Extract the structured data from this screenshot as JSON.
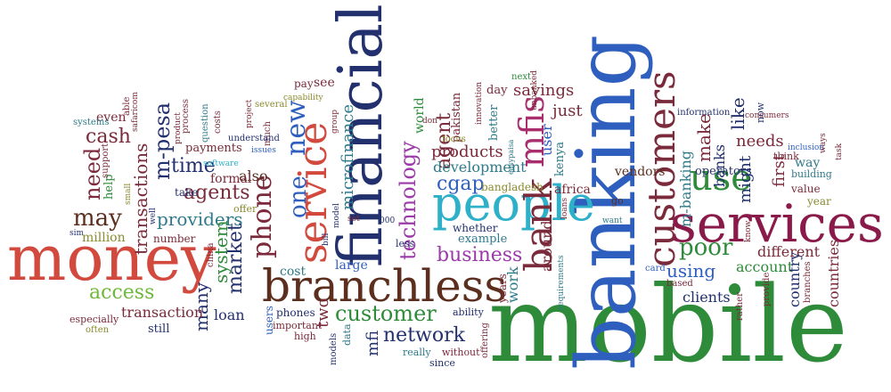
{
  "palette": {
    "green": "#2e8b3a",
    "blue": "#2e5fbf",
    "red": "#d24a3e",
    "maroon": "#7a2a3a",
    "purple": "#9b3aa8",
    "cyan": "#2eb0c8",
    "olive": "#8a8a2e",
    "darkblue": "#23306e",
    "brown": "#5c2e1e",
    "teal": "#2e7a8a",
    "magenta": "#a82e6e",
    "lightgreen": "#6eb83a"
  },
  "words": [
    "mobile",
    "banking",
    "financial",
    "money",
    "services",
    "branchless",
    "people",
    "service",
    "customers",
    "mfis",
    "bank",
    "use",
    "customer",
    "network",
    "technology",
    "business",
    "phone",
    "new",
    "one",
    "agents",
    "may",
    "cash",
    "need",
    "m-pesa",
    "time",
    "providers",
    "microfinance",
    "agent",
    "cgap",
    "poor",
    "access",
    "market",
    "transactions",
    "also",
    "system",
    "many",
    "products",
    "development",
    "savings",
    "using",
    "like",
    "make",
    "m-banking",
    "banks",
    "needs",
    "first",
    "might",
    "clients",
    "transaction",
    "account",
    "different",
    "country",
    "countries",
    "around",
    "user",
    "work",
    "world",
    "pakistan",
    "bangladesh",
    "africa",
    "kenya",
    "better",
    "just",
    "vendors",
    "large",
    "cost",
    "two",
    "mfi",
    "loan",
    "users",
    "phones",
    "important",
    "high",
    "data",
    "models",
    "really",
    "since",
    "without",
    "ability",
    "example",
    "whether",
    "less",
    "years",
    "offering",
    "requirements",
    "loans",
    "go",
    "want",
    "card",
    "based",
    "rather",
    "provide",
    "branches",
    "value",
    "year",
    "way",
    "think",
    "inclusion",
    "ways",
    "task",
    "building",
    "now",
    "information",
    "operators",
    "able",
    "help",
    "support",
    "well",
    "even",
    "systems",
    "safaricom",
    "small",
    "product",
    "process",
    "question",
    "costs",
    "payments",
    "project",
    "several",
    "much",
    "understand",
    "issues",
    "software",
    "offer",
    "formal",
    "take",
    "china",
    "bill",
    "sim",
    "million",
    "number",
    "especially",
    "often",
    "still",
    "pay",
    "see",
    "capability",
    "group",
    "don",
    "focus",
    "innovation",
    "day",
    "next",
    "unbanked",
    "easypaisa",
    "set",
    "000",
    "model",
    "consumers",
    "know",
    "operators"
  ]
}
